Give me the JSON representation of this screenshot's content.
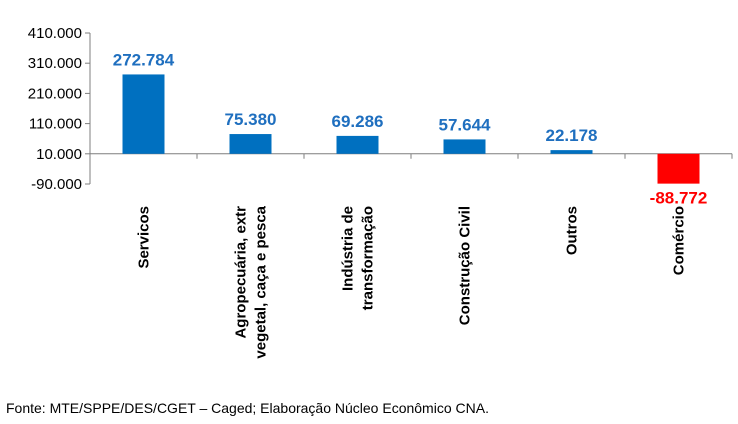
{
  "chart_data": {
    "type": "bar",
    "title": "",
    "xlabel": "",
    "ylabel": "",
    "ylim": [
      -90000,
      410000
    ],
    "yticks": [
      -90000,
      10000,
      110000,
      210000,
      310000,
      410000
    ],
    "ytick_labels": [
      "-90.000",
      "10.000",
      "110.000",
      "210.000",
      "310.000",
      "410.000"
    ],
    "baseline": 10000,
    "categories": [
      [
        "Servicos"
      ],
      [
        "Agropecuária, extr",
        "vegetal, caça e pesca"
      ],
      [
        "Indústria de",
        "transformação"
      ],
      [
        "Construção Civil"
      ],
      [
        "Outros"
      ],
      [
        "Comércio"
      ]
    ],
    "values": [
      272784,
      75380,
      69286,
      57644,
      22178,
      -88772
    ],
    "value_labels": [
      "272.784",
      "75.380",
      "69.286",
      "57.644",
      "22.178",
      "-88.772"
    ],
    "colors": {
      "positive_bar": "#0070c0",
      "negative_bar": "#ff0000",
      "positive_label": "#1f6fbf",
      "negative_label": "#ff0000",
      "axis": "#7f7f7f"
    }
  },
  "source_note": "Fonte: MTE/SPPE/DES/CGET – Caged; Elaboração Núcleo Econômico CNA."
}
